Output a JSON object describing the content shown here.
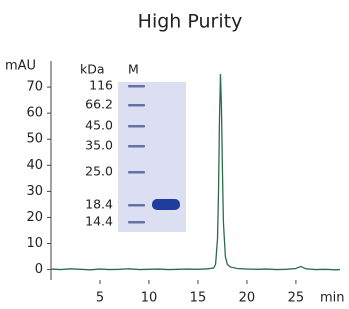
{
  "chart_data": {
    "type": "line",
    "title": "High Purity",
    "xlabel": "min",
    "ylabel": "mAU",
    "xlim": [
      0,
      29.5
    ],
    "ylim": [
      -4,
      80
    ],
    "xticks": [
      5,
      10,
      15,
      20,
      25
    ],
    "yticks": [
      0,
      10,
      20,
      30,
      40,
      50,
      60,
      70
    ],
    "x": [
      0,
      1,
      2,
      3,
      4,
      5,
      6,
      7,
      8,
      9,
      10,
      11,
      12,
      13,
      14,
      15,
      16,
      16.6,
      16.8,
      17.0,
      17.1,
      17.2,
      17.3,
      17.4,
      17.5,
      17.6,
      17.8,
      18.0,
      18.3,
      19,
      20,
      21,
      22,
      23,
      24,
      25,
      25.5,
      26,
      27,
      28,
      29,
      29.5
    ],
    "series": [
      {
        "name": null,
        "color": "#2f6a4c",
        "values": [
          0.2,
          0.0,
          0.3,
          0.1,
          -0.1,
          0.2,
          0.0,
          0.1,
          0.3,
          0.0,
          0.1,
          0.2,
          0.0,
          0.1,
          0.2,
          0.1,
          0.3,
          0.6,
          2,
          12,
          30,
          58,
          75,
          62,
          38,
          18,
          5,
          2,
          1,
          0.4,
          0.2,
          0.1,
          0.2,
          0.0,
          0.1,
          0.4,
          1.2,
          0.3,
          0.0,
          0.1,
          -0.1,
          0.0
        ]
      }
    ],
    "inset": {
      "unit_label": "kDa",
      "lane_label": "M",
      "marker_labels": [
        "116",
        "66.2",
        "45.0",
        "35.0",
        "25.0",
        "18.4",
        "14.4"
      ]
    }
  }
}
